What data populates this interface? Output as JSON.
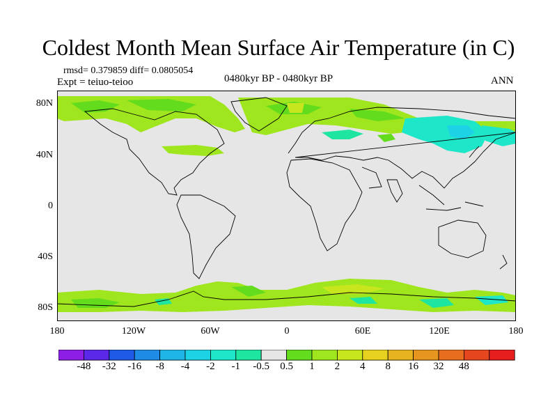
{
  "title": "Coldest Month Mean Surface Air Temperature (in C)",
  "stats_line": "rmsd= 0.379859 diff= 0.0805054",
  "experiment": "Expt = teiuo-teioo",
  "period": "0480kyr BP - 0480kyr BP",
  "season": "ANN",
  "colors": {
    "background_fill": "#e6e6e6",
    "coastline": "#000000"
  },
  "lat_labels": [
    "80N",
    "40N",
    "0",
    "40S",
    "80S"
  ],
  "lon_labels": [
    "180",
    "120W",
    "60W",
    "0",
    "60E",
    "120E",
    "180"
  ],
  "legend": {
    "colors": [
      "#8c1ee6",
      "#5a28e6",
      "#1e5ae6",
      "#1e8ce6",
      "#1eb4e6",
      "#1ed2e6",
      "#1ee6c8",
      "#1ee6a0",
      "#e6e6e6",
      "#64dc1e",
      "#a0e61e",
      "#c8e61e",
      "#e6d21e",
      "#e6b41e",
      "#e6961e",
      "#e66e1e",
      "#e6461e",
      "#e61e1e"
    ],
    "labels": [
      "-48",
      "-32",
      "-16",
      "-8",
      "-4",
      "-2",
      "-1",
      "-0.5",
      "0.5",
      "1",
      "2",
      "4",
      "8",
      "16",
      "32",
      "48"
    ]
  }
}
